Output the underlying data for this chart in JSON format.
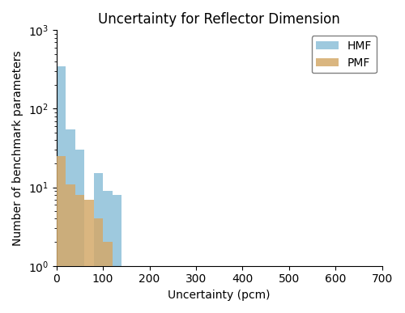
{
  "title": "Uncertainty for Reflector Dimension",
  "xlabel": "Uncertainty (pcm)",
  "ylabel": "Number of benchmark parameters",
  "xlim": [
    0,
    700
  ],
  "ylim_log": [
    1,
    1000
  ],
  "hmf_color": "#7EB8D4",
  "pmf_color": "#D4A96A",
  "hmf_alpha": 0.75,
  "pmf_alpha": 0.85,
  "bin_width": 20,
  "bin_edges": [
    0,
    20,
    40,
    60,
    80,
    100,
    120,
    140,
    160,
    180,
    200,
    220,
    240,
    260,
    280,
    300,
    320,
    340,
    360,
    380,
    400,
    420,
    440,
    460,
    480,
    500,
    520,
    540,
    560,
    580,
    600,
    620,
    640,
    660,
    680,
    700
  ],
  "hmf_counts": [
    350,
    55,
    30,
    0,
    15,
    9,
    8,
    0,
    1,
    0,
    1,
    0,
    1,
    0,
    0,
    1,
    0,
    0,
    0,
    0,
    0,
    0,
    0,
    0,
    0,
    0,
    0,
    0,
    0,
    0,
    0,
    0,
    0,
    0,
    0
  ],
  "pmf_counts": [
    25,
    11,
    8,
    7,
    4,
    2,
    0,
    0,
    0,
    0,
    0,
    0,
    0,
    0,
    0,
    0,
    0,
    0,
    0,
    0,
    0,
    0,
    0,
    0,
    0,
    0,
    0,
    0,
    0,
    0,
    0,
    0,
    0,
    0,
    0
  ],
  "legend_labels": [
    "HMF",
    "PMF"
  ]
}
